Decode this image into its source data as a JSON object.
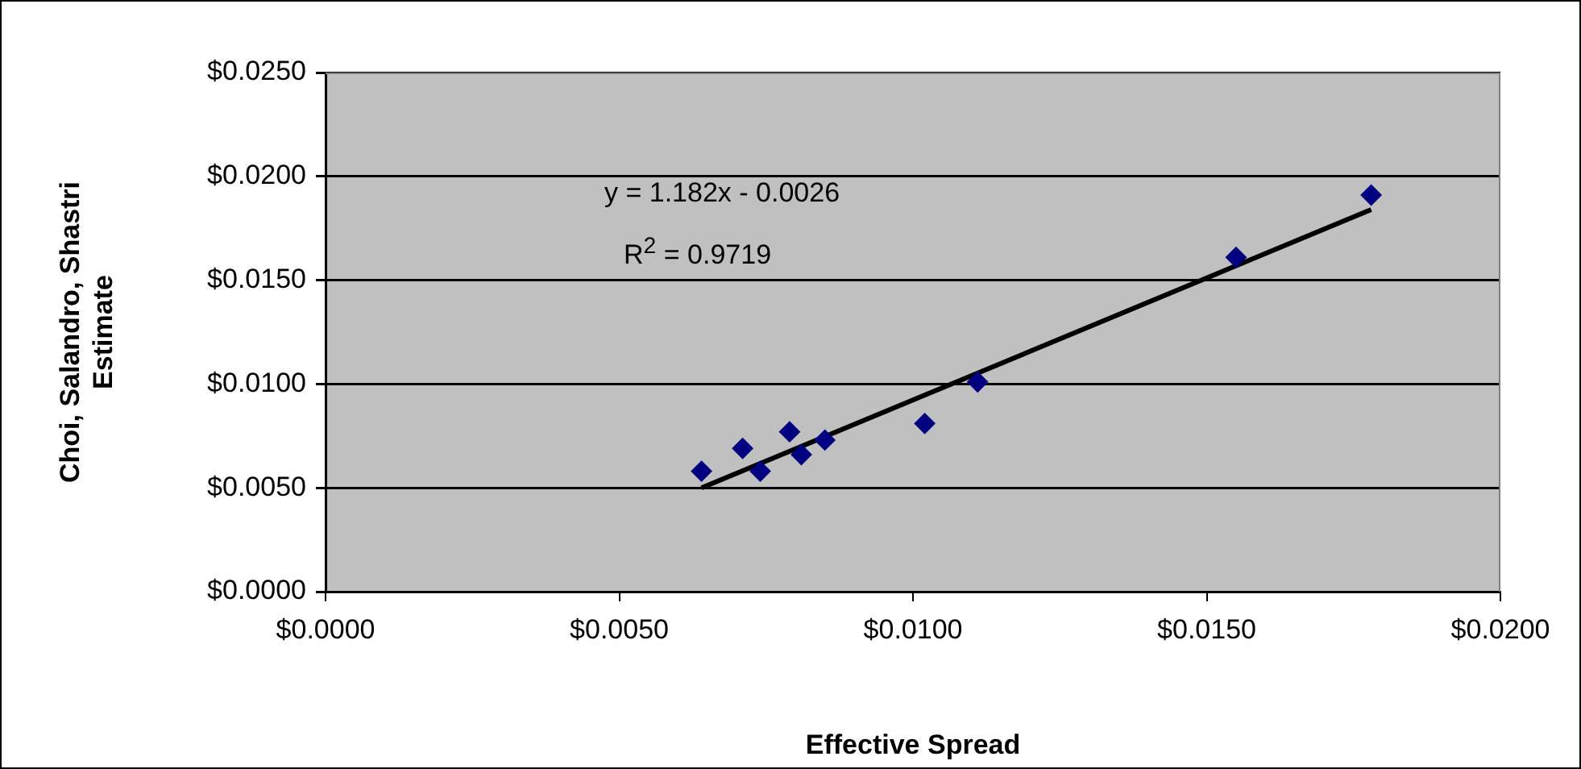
{
  "chart_data": {
    "type": "scatter",
    "xlabel": "Effective Spread",
    "ylabel": "Choi, Salandro, Shastri Estimate",
    "xlim": [
      0,
      0.02
    ],
    "xticks": [
      {
        "value": 0,
        "label": "$0.0000"
      },
      {
        "value": 0.005,
        "label": "$0.0050"
      },
      {
        "value": 0.01,
        "label": "$0.0100"
      },
      {
        "value": 0.015,
        "label": "$0.0150"
      },
      {
        "value": 0.02,
        "label": "$0.0200"
      }
    ],
    "ylim": [
      0,
      0.025
    ],
    "yticks": [
      {
        "value": 0,
        "label": "$0.0000"
      },
      {
        "value": 0.005,
        "label": "$0.0050"
      },
      {
        "value": 0.01,
        "label": "$0.0100"
      },
      {
        "value": 0.015,
        "label": "$0.0150"
      },
      {
        "value": 0.02,
        "label": "$0.0200"
      },
      {
        "value": 0.025,
        "label": "$0.0250"
      }
    ],
    "grid": "y",
    "legend": false,
    "series": [
      {
        "type": "scatter",
        "color": "#000080",
        "marker": "diamond",
        "x": [
          0.0064,
          0.0071,
          0.0074,
          0.0079,
          0.0081,
          0.0085,
          0.0102,
          0.0111,
          0.0155,
          0.0178
        ],
        "values": [
          0.0058,
          0.0069,
          0.0058,
          0.0077,
          0.0066,
          0.0073,
          0.0081,
          0.0101,
          0.0161,
          0.0191
        ]
      },
      {
        "type": "line",
        "color": "#000000",
        "marker": "none",
        "line_style": "solid",
        "x": [
          0.0064,
          0.0178
        ],
        "values": [
          0.005,
          0.0184
        ]
      }
    ],
    "annotations": [
      "y = 1.182x - 0.0026",
      "R$^{2}$ = 0.9719"
    ]
  }
}
